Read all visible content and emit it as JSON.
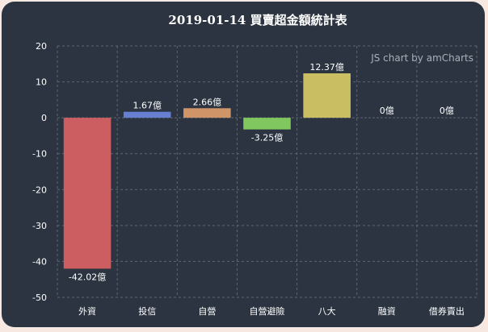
{
  "chart_data": {
    "type": "bar",
    "title": "2019-01-14 買賣超金額統計表",
    "credit": "JS chart by amCharts",
    "categories": [
      "外資",
      "投信",
      "自營",
      "自營避險",
      "八大",
      "融資",
      "借券賣出"
    ],
    "values": [
      -42.02,
      1.67,
      2.66,
      -3.25,
      12.37,
      0,
      0
    ],
    "labels": [
      "-42.02億",
      "1.67億",
      "2.66億",
      "-3.25億",
      "12.37億",
      "0億",
      "0億"
    ],
    "colors": [
      "#d56164",
      "#6a84d8",
      "#d99a6c",
      "#85d062",
      "#d3c664",
      "#ffffff",
      "#ffffff"
    ],
    "ylim": [
      -50,
      20
    ],
    "yticks": [
      20,
      10,
      0,
      -10,
      -20,
      -30,
      -40,
      -50
    ],
    "ytick_labels": [
      "20",
      "10",
      "0",
      "-10",
      "-20",
      "-30",
      "-40",
      "-50"
    ],
    "xlabel": "",
    "ylabel": "",
    "grid": true
  }
}
